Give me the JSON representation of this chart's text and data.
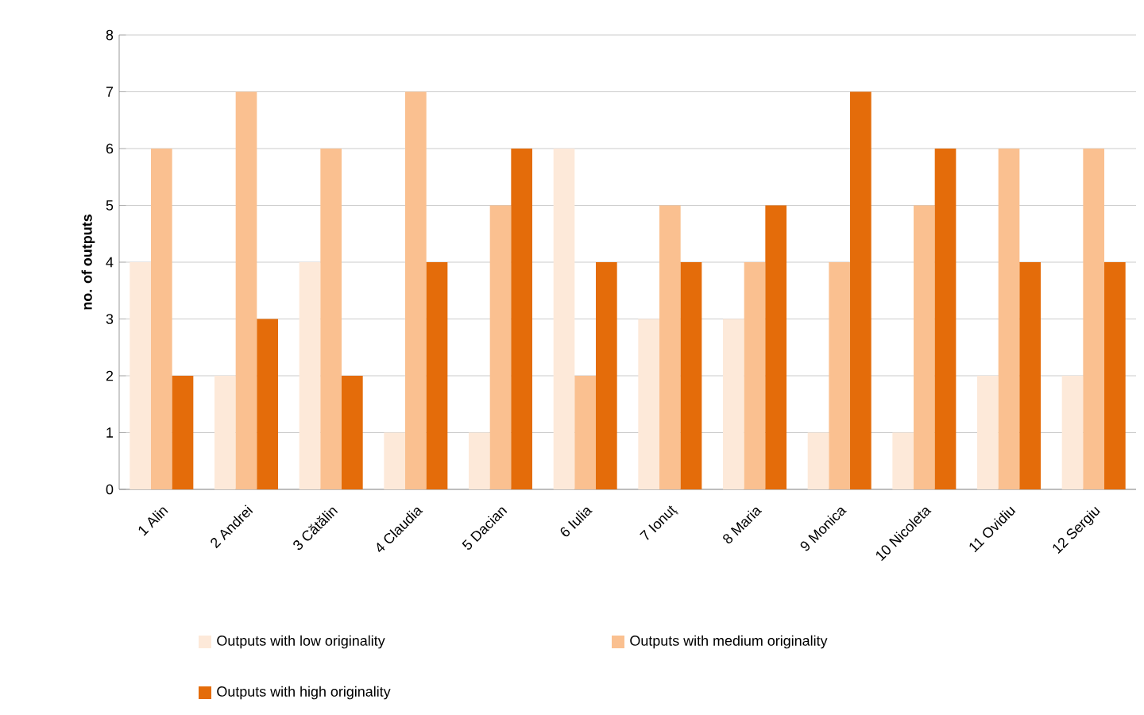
{
  "chart_data": {
    "type": "bar",
    "ylabel": "no. of outputs",
    "categories": [
      "1 Alin",
      "2 Andrei",
      "3 Cătălin",
      "4 Claudia",
      "5 Dacian",
      "6 Iulia",
      "7 Ionuț",
      "8 Maria",
      "9 Monica",
      "10 Nicoleta",
      "11 Ovidiu",
      "12 Sergiu"
    ],
    "series": [
      {
        "name": "Outputs with low originality",
        "color": "#fde9d9",
        "values": [
          4,
          2,
          4,
          1,
          1,
          6,
          3,
          3,
          1,
          1,
          2,
          2
        ]
      },
      {
        "name": "Outputs with medium originality",
        "color": "#fac090",
        "values": [
          6,
          7,
          6,
          7,
          5,
          2,
          5,
          4,
          4,
          5,
          6,
          6
        ]
      },
      {
        "name": "Outputs with high originality",
        "color": "#e46c0a",
        "values": [
          2,
          3,
          2,
          4,
          6,
          4,
          4,
          5,
          7,
          6,
          4,
          4
        ]
      }
    ],
    "ylim": [
      0,
      8
    ],
    "yticks": [
      0,
      1,
      2,
      3,
      4,
      5,
      6,
      7,
      8
    ],
    "grid": "y",
    "legend": "bottom"
  }
}
